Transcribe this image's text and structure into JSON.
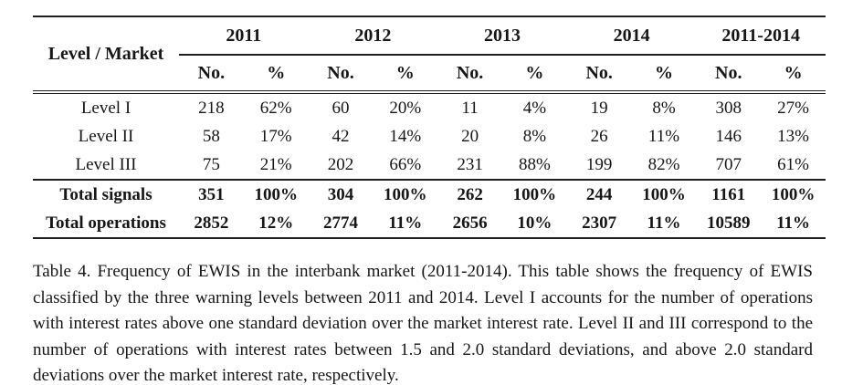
{
  "table": {
    "corner_label": "Level / Market",
    "year_groups": [
      "2011",
      "2012",
      "2013",
      "2014",
      "2011-2014"
    ],
    "sub_headers": [
      "No.",
      "%",
      "No.",
      "%",
      "No.",
      "%",
      "No.",
      "%",
      "No.",
      "%"
    ],
    "rows": [
      {
        "label": "Level I",
        "values": [
          "218",
          "62%",
          "60",
          "20%",
          "11",
          "4%",
          "19",
          "8%",
          "308",
          "27%"
        ]
      },
      {
        "label": "Level II",
        "values": [
          "58",
          "17%",
          "42",
          "14%",
          "20",
          "8%",
          "26",
          "11%",
          "146",
          "13%"
        ]
      },
      {
        "label": "Level III",
        "values": [
          "75",
          "21%",
          "202",
          "66%",
          "231",
          "88%",
          "199",
          "82%",
          "707",
          "61%"
        ]
      }
    ],
    "total_rows": [
      {
        "label": "Total signals",
        "values": [
          "351",
          "100%",
          "304",
          "100%",
          "262",
          "100%",
          "244",
          "100%",
          "1161",
          "100%"
        ]
      },
      {
        "label": "Total operations",
        "values": [
          "2852",
          "12%",
          "2774",
          "11%",
          "2656",
          "10%",
          "2307",
          "11%",
          "10589",
          "11%"
        ]
      }
    ]
  },
  "caption": "Table 4. Frequency of EWIS in the interbank market (2011-2014). This table shows the frequency of EWIS classified by the three warning levels between 2011 and 2014. Level I accounts for the number of operations with interest rates above one standard deviation over the market interest rate. Level II and III correspond to the number of operations with interest rates between 1.5 and 2.0 standard deviations, and above 2.0 standard deviations over the market interest rate, respectively."
}
